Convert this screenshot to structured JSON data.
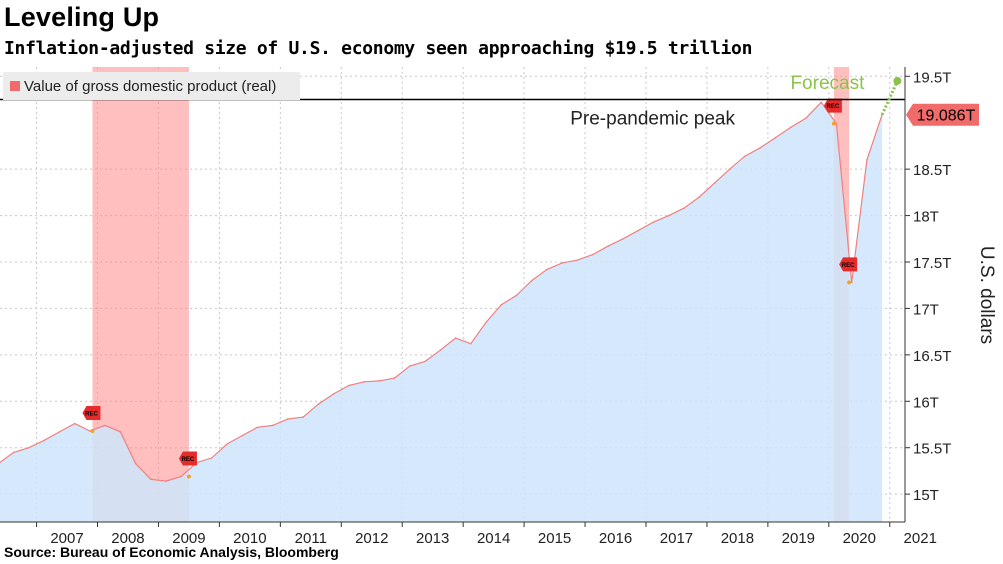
{
  "title": "Leveling Up",
  "subtitle": "Inflation-adjusted size of U.S. economy seen approaching $19.5 trillion",
  "source": "Source: Bureau of Economic Analysis, Bloomberg",
  "colors": {
    "area_fill": "#cfe5fb",
    "line": "#f08080",
    "recession_band": "#ff8a8a",
    "forecast": "#8bc34a",
    "last_value_tag": "#f26b6b",
    "reference_line": "#000000",
    "grid": "#c8c8c8"
  },
  "chart_data": {
    "type": "area",
    "ylabel": "U.S. dollars",
    "ylim": [
      14.7,
      19.6
    ],
    "xlim": [
      2006.4,
      2021.25
    ],
    "y_ticks": [
      {
        "value": 15.0,
        "label": "15T"
      },
      {
        "value": 15.5,
        "label": "15.5T"
      },
      {
        "value": 16.0,
        "label": "16T"
      },
      {
        "value": 16.5,
        "label": "16.5T"
      },
      {
        "value": 17.0,
        "label": "17T"
      },
      {
        "value": 17.5,
        "label": "17.5T"
      },
      {
        "value": 18.0,
        "label": "18T"
      },
      {
        "value": 18.5,
        "label": "18.5T"
      },
      {
        "value": 19.5,
        "label": "19.5T"
      }
    ],
    "x_ticks": [
      "2007",
      "2008",
      "2009",
      "2010",
      "2011",
      "2012",
      "2013",
      "2014",
      "2015",
      "2016",
      "2017",
      "2018",
      "2019",
      "2020",
      "2021"
    ],
    "grid": true,
    "legend": {
      "placement": "top-left",
      "entries": [
        "Value of gross domestic product (real)"
      ]
    },
    "series": [
      {
        "name": "Value of gross domestic product (real)",
        "x": [
          2006.375,
          2006.625,
          2006.875,
          2007.125,
          2007.375,
          2007.625,
          2007.875,
          2008.125,
          2008.375,
          2008.625,
          2008.875,
          2009.125,
          2009.375,
          2009.625,
          2009.875,
          2010.125,
          2010.375,
          2010.625,
          2010.875,
          2011.125,
          2011.375,
          2011.625,
          2011.875,
          2012.125,
          2012.375,
          2012.625,
          2012.875,
          2013.125,
          2013.375,
          2013.625,
          2013.875,
          2014.125,
          2014.375,
          2014.625,
          2014.875,
          2015.125,
          2015.375,
          2015.625,
          2015.875,
          2016.125,
          2016.375,
          2016.625,
          2016.875,
          2017.125,
          2017.375,
          2017.625,
          2017.875,
          2018.125,
          2018.375,
          2018.625,
          2018.875,
          2019.125,
          2019.375,
          2019.625,
          2019.875,
          2020.125,
          2020.375,
          2020.625,
          2020.875
        ],
        "values": [
          15.33,
          15.45,
          15.5,
          15.58,
          15.67,
          15.76,
          15.68,
          15.74,
          15.67,
          15.33,
          15.16,
          15.14,
          15.19,
          15.34,
          15.39,
          15.54,
          15.63,
          15.72,
          15.74,
          15.81,
          15.83,
          15.97,
          16.08,
          16.17,
          16.21,
          16.22,
          16.25,
          16.38,
          16.43,
          16.55,
          16.68,
          16.62,
          16.85,
          17.04,
          17.14,
          17.3,
          17.42,
          17.49,
          17.52,
          17.58,
          17.67,
          17.75,
          17.84,
          17.93,
          18.0,
          18.08,
          18.2,
          18.35,
          18.5,
          18.64,
          18.73,
          18.84,
          18.95,
          19.05,
          19.22,
          18.99,
          17.28,
          18.6,
          19.086
        ]
      },
      {
        "name": "Forecast",
        "x": [
          2020.875,
          2021.125
        ],
        "values": [
          19.086,
          19.45
        ]
      }
    ],
    "recessions": [
      {
        "start": 2007.917,
        "end": 2009.5
      },
      {
        "start": 2020.083,
        "end": 2020.333
      }
    ],
    "recession_marker_label": "REC",
    "reference_line": {
      "value": 19.25,
      "label": "Pre-pandemic peak"
    },
    "forecast_label": "Forecast",
    "last_value_label": "19.086T"
  }
}
